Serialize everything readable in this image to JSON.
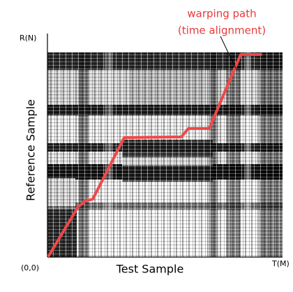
{
  "annotation": {
    "line1": "warping path",
    "line2": "(time alignment)"
  },
  "axes": {
    "y_end": "R(N)",
    "y_label": "Reference Sample",
    "origin": "(0,0)",
    "x_label": "Test Sample",
    "x_end": "T(M)"
  }
}
